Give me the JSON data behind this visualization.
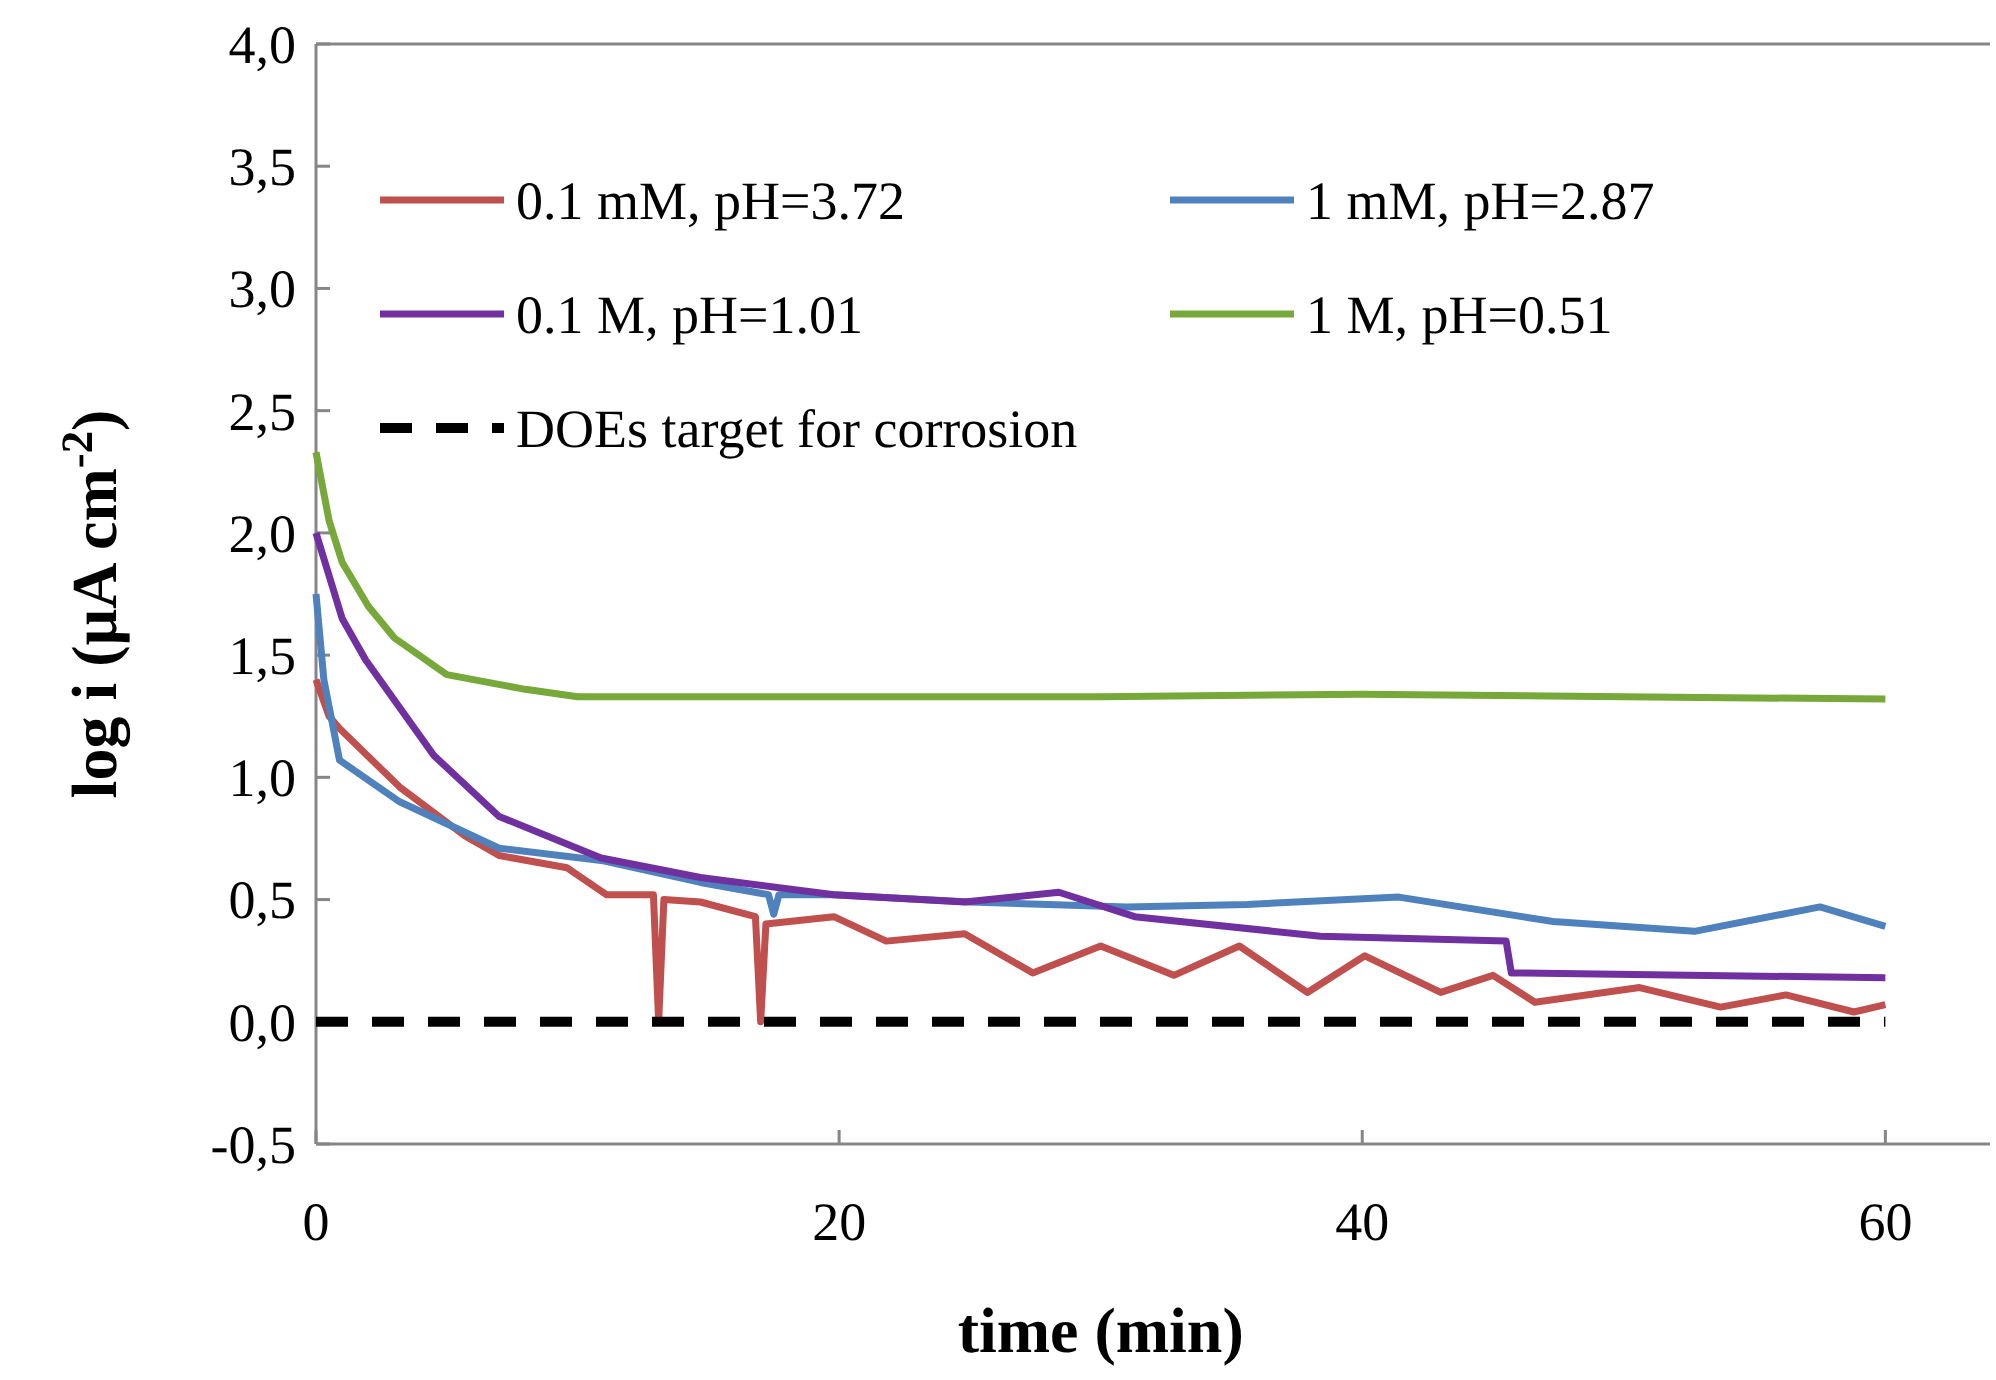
{
  "chart_data": {
    "type": "line",
    "xlabel": "time (min)",
    "ylabel": "log i (µA cm$^{-2}$)",
    "xlim": [
      0,
      64
    ],
    "xticks": [
      0,
      20,
      40,
      60
    ],
    "ylim": [
      -0.5,
      4
    ],
    "yticks": [
      {
        "value": -0.5,
        "label": "-0,5"
      },
      {
        "value": 0,
        "label": "0,0"
      },
      {
        "value": 0.5,
        "label": "0,5"
      },
      {
        "value": 1,
        "label": "1,0"
      },
      {
        "value": 1.5,
        "label": "1,5"
      },
      {
        "value": 2,
        "label": "2,0"
      },
      {
        "value": 2.5,
        "label": "2,5"
      },
      {
        "value": 3,
        "label": "3,0"
      },
      {
        "value": 3.5,
        "label": "3,5"
      },
      {
        "value": 4,
        "label": "4,0"
      }
    ],
    "grid": false,
    "legend": "top",
    "marker": "none",
    "series": [
      {
        "name": "0.1 mM, pH=3.72",
        "color": "#c0504d",
        "x": [
          0,
          0.5,
          0.9,
          3.2,
          5.7,
          7,
          9.6,
          11.1,
          12.9,
          13.1,
          13.3,
          14.7,
          16.8,
          17,
          17.2,
          19.8,
          21.8,
          24.8,
          27.4,
          30,
          32.8,
          35.3,
          37.9,
          40.1,
          43,
          45,
          46.6,
          50.6,
          53.7,
          56.2,
          58.8,
          60
        ],
        "values": [
          1.4,
          1.25,
          1.2,
          0.96,
          0.76,
          0.68,
          0.63,
          0.52,
          0.52,
          0,
          0.5,
          0.49,
          0.43,
          0,
          0.4,
          0.43,
          0.33,
          0.36,
          0.2,
          0.31,
          0.19,
          0.31,
          0.12,
          0.27,
          0.12,
          0.19,
          0.08,
          0.14,
          0.06,
          0.11,
          0.04,
          0.07
        ]
      },
      {
        "name": "1 mM, pH=2.87",
        "color": "#4f81bd",
        "x": [
          0,
          0.3,
          0.9,
          3.2,
          7,
          10.9,
          14.7,
          17.3,
          17.5,
          17.7,
          19.8,
          25,
          31,
          35.6,
          41.4,
          47.3,
          52.7,
          57.5,
          60
        ],
        "values": [
          1.75,
          1.4,
          1.07,
          0.9,
          0.71,
          0.66,
          0.57,
          0.52,
          0.44,
          0.52,
          0.52,
          0.49,
          0.47,
          0.48,
          0.51,
          0.41,
          0.37,
          0.47,
          0.39
        ]
      },
      {
        "name": "0.1 M, pH=1.01",
        "color": "#7030a0",
        "x": [
          0,
          1,
          1.9,
          4.5,
          7,
          10.9,
          14.7,
          19.8,
          24.8,
          28.4,
          31.3,
          38.4,
          45.5,
          45.7,
          60
        ],
        "values": [
          2,
          1.65,
          1.48,
          1.09,
          0.84,
          0.67,
          0.59,
          0.52,
          0.49,
          0.53,
          0.43,
          0.35,
          0.33,
          0.2,
          0.18
        ]
      },
      {
        "name": "1 M, pH=0.51",
        "color": "#77a83a",
        "x": [
          0,
          0.5,
          1,
          2,
          3,
          5,
          8,
          10,
          20,
          30,
          40,
          50,
          60
        ],
        "values": [
          2.33,
          2.05,
          1.88,
          1.7,
          1.57,
          1.42,
          1.36,
          1.33,
          1.33,
          1.33,
          1.34,
          1.33,
          1.32
        ]
      },
      {
        "name": "DOEs target for corrosion",
        "color": "#000000",
        "line_style": "dashed",
        "x": [
          0,
          60
        ],
        "values": [
          0,
          0
        ]
      }
    ]
  }
}
